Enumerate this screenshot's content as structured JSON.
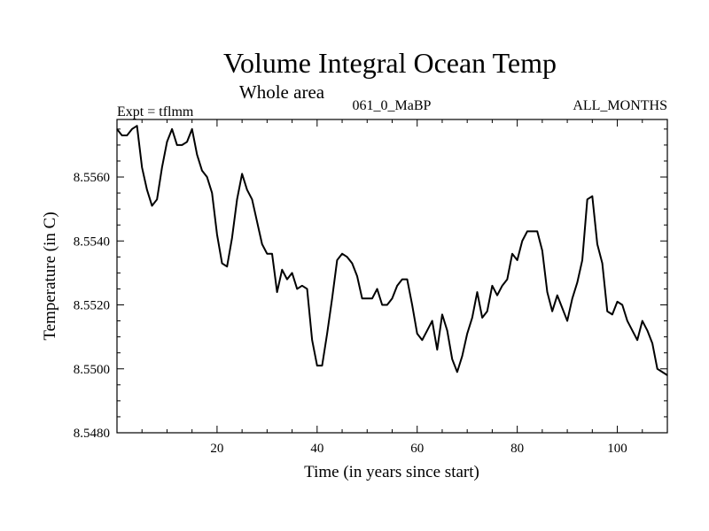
{
  "chart_data": {
    "type": "line",
    "title": "Volume Integral Ocean Temp",
    "subtitle": "Whole area",
    "annotations": {
      "left": "Expt = tflmm",
      "center": "061_0_MaBP",
      "right": "ALL_MONTHS"
    },
    "xlabel": "Time (in years since start)",
    "ylabel": "Temperature (in C)",
    "xlim": [
      0,
      110
    ],
    "ylim": [
      8.548,
      8.5578
    ],
    "xticks": [
      20,
      40,
      60,
      80,
      100
    ],
    "xtick_labels": [
      "20",
      "40",
      "60",
      "80",
      "100"
    ],
    "yticks": [
      8.548,
      8.55,
      8.552,
      8.554,
      8.556
    ],
    "ytick_labels": [
      "8.5480",
      "8.5500",
      "8.5520",
      "8.5540",
      "8.5560"
    ],
    "grid": false,
    "series": [
      {
        "name": "Volume Integral Ocean Temp",
        "color": "#000000",
        "x": [
          0,
          1,
          2,
          3,
          4,
          5,
          6,
          7,
          8,
          9,
          10,
          11,
          12,
          13,
          14,
          15,
          16,
          17,
          18,
          19,
          20,
          21,
          22,
          23,
          24,
          25,
          26,
          27,
          28,
          29,
          30,
          31,
          32,
          33,
          34,
          35,
          36,
          37,
          38,
          39,
          40,
          41,
          42,
          43,
          44,
          45,
          46,
          47,
          48,
          49,
          50,
          51,
          52,
          53,
          54,
          55,
          56,
          57,
          58,
          59,
          60,
          61,
          62,
          63,
          64,
          65,
          66,
          67,
          68,
          69,
          70,
          71,
          72,
          73,
          74,
          75,
          76,
          77,
          78,
          79,
          80,
          81,
          82,
          83,
          84,
          85,
          86,
          87,
          88,
          89,
          90,
          91,
          92,
          93,
          94,
          95,
          96,
          97,
          98,
          99,
          100,
          101,
          102,
          103,
          104,
          105,
          106,
          107,
          108,
          109,
          110
        ],
        "values": [
          8.5575,
          8.5573,
          8.5573,
          8.5575,
          8.5576,
          8.5563,
          8.5556,
          8.5551,
          8.5553,
          8.5563,
          8.5571,
          8.5575,
          8.557,
          8.557,
          8.5571,
          8.5575,
          8.5567,
          8.5562,
          8.556,
          8.5555,
          8.5542,
          8.5533,
          8.5532,
          8.5541,
          8.5553,
          8.5561,
          8.5556,
          8.5553,
          8.5546,
          8.5539,
          8.5536,
          8.5536,
          8.5524,
          8.5531,
          8.5528,
          8.553,
          8.5525,
          8.5526,
          8.5525,
          8.5509,
          8.5501,
          8.5501,
          8.5511,
          8.5522,
          8.5534,
          8.5536,
          8.5535,
          8.5533,
          8.5529,
          8.5522,
          8.5522,
          8.5522,
          8.5525,
          8.552,
          8.552,
          8.5522,
          8.5526,
          8.5528,
          8.5528,
          8.552,
          8.5511,
          8.5509,
          8.5512,
          8.5515,
          8.5506,
          8.5517,
          8.5512,
          8.5503,
          8.5499,
          8.5504,
          8.5511,
          8.5516,
          8.5524,
          8.5516,
          8.5518,
          8.5526,
          8.5523,
          8.5526,
          8.5528,
          8.5536,
          8.5534,
          8.554,
          8.5543,
          8.5543,
          8.5543,
          8.5537,
          8.5524,
          8.5518,
          8.5523,
          8.5519,
          8.5515,
          8.5522,
          8.5527,
          8.5534,
          8.5553,
          8.5554,
          8.5539,
          8.5533,
          8.5518,
          8.5517,
          8.5521,
          8.552,
          8.5515,
          8.5512,
          8.5509,
          8.5515,
          8.5512,
          8.5508,
          8.55,
          8.5499,
          8.5498
        ]
      }
    ]
  }
}
